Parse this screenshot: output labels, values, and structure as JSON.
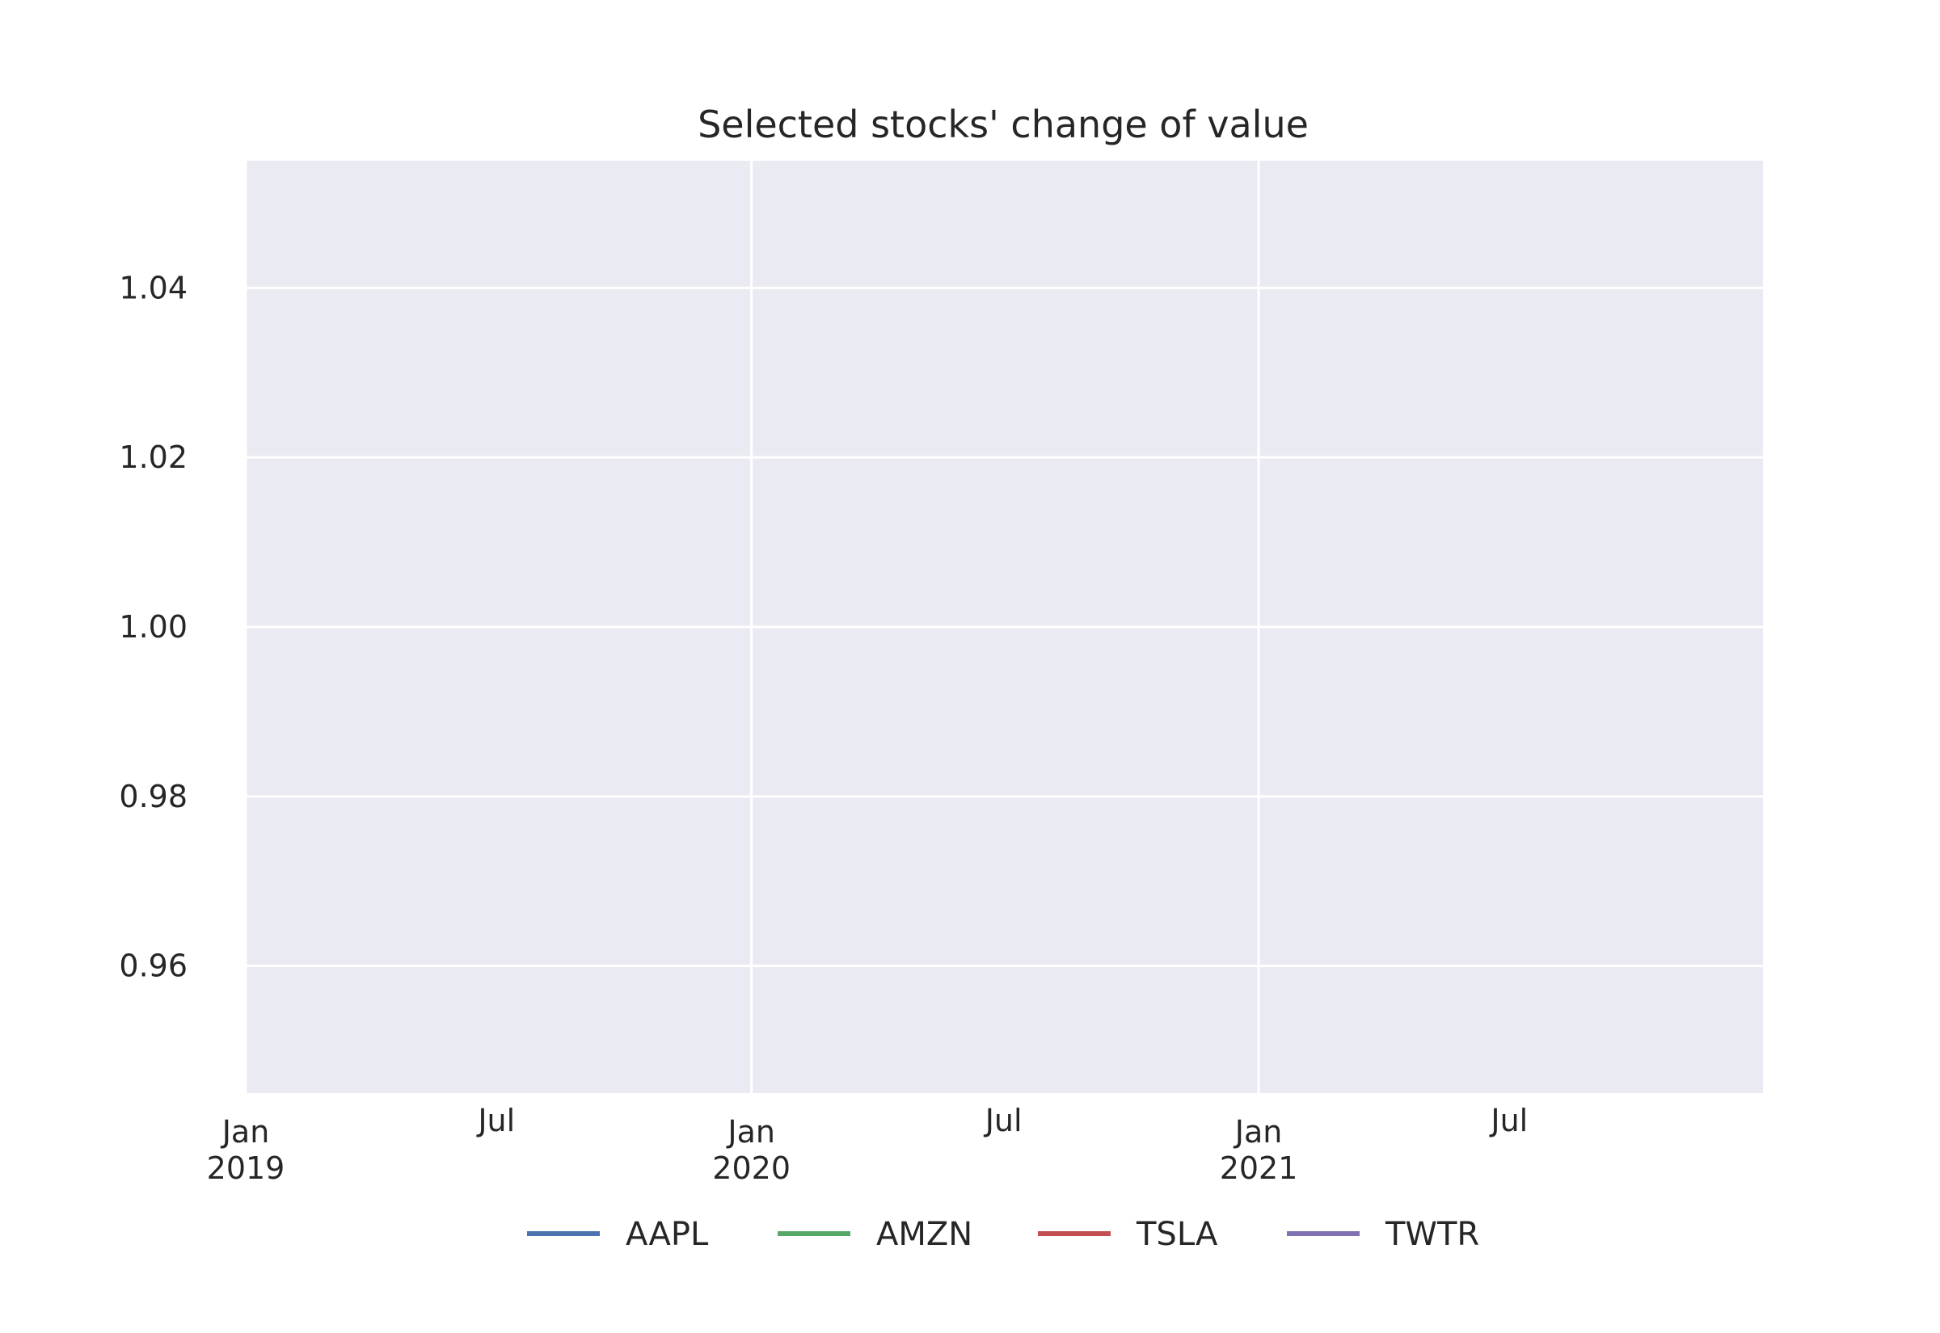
{
  "chart_data": {
    "type": "line",
    "title": "Selected stocks' change of value",
    "xlabel": "",
    "ylabel": "",
    "x_ticks": [
      {
        "date": "2019-01-01",
        "label": [
          "Jan",
          "2019"
        ]
      },
      {
        "date": "2019-07-01",
        "label": [
          "Jul"
        ]
      },
      {
        "date": "2020-01-01",
        "label": [
          "Jan",
          "2020"
        ]
      },
      {
        "date": "2020-07-01",
        "label": [
          "Jul"
        ]
      },
      {
        "date": "2021-01-01",
        "label": [
          "Jan",
          "2021"
        ]
      },
      {
        "date": "2021-07-01",
        "label": [
          "Jul"
        ]
      }
    ],
    "xlim": [
      "2019-01-01",
      "2021-12-31"
    ],
    "ylim": [
      0.945,
      1.055
    ],
    "y_ticks": [
      "0.96",
      "0.98",
      "1.00",
      "1.02",
      "1.04"
    ],
    "grid": true,
    "legend_position": "bottom-center",
    "series": [
      {
        "name": "AAPL",
        "color": "#4c72b0",
        "values": []
      },
      {
        "name": "AMZN",
        "color": "#55a868",
        "values": []
      },
      {
        "name": "TSLA",
        "color": "#c44e52",
        "values": []
      },
      {
        "name": "TWTR",
        "color": "#8172b2",
        "values": []
      }
    ],
    "background": "#eaeaf2",
    "grid_color": "#ffffff"
  }
}
